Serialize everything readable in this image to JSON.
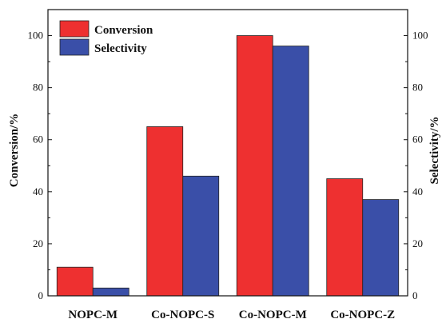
{
  "chart_data": {
    "type": "bar",
    "categories": [
      "NOPC-M",
      "Co-NOPC-S",
      "Co-NOPC-M",
      "Co-NOPC-Z"
    ],
    "series": [
      {
        "name": "Conversion",
        "values": [
          11,
          65,
          100,
          45
        ],
        "color": "#ee3030",
        "axis": "left"
      },
      {
        "name": "Selectivity",
        "values": [
          3,
          46,
          96,
          37
        ],
        "color": "#3a4fa8",
        "axis": "right"
      }
    ],
    "ylabel": "Conversion/%",
    "y2label": "Selectivity/%",
    "ylim": [
      0,
      110
    ],
    "y2lim": [
      0,
      110
    ],
    "yticks": [
      0,
      20,
      40,
      60,
      80,
      100
    ],
    "legend_position": "top-left",
    "grid": false
  }
}
